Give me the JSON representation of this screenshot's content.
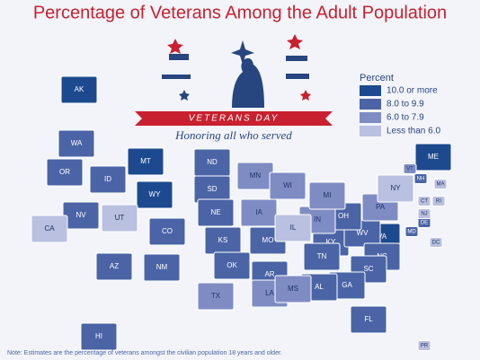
{
  "title": "Percentage of Veterans Among the Adult Population",
  "banner": {
    "title": "VETERANS DAY",
    "subtitle": "Honoring all who served"
  },
  "legend": {
    "title": "Percent",
    "items": [
      {
        "label": "10.0 or more",
        "color": "#1d4a8f",
        "states": [
          "AK",
          "MT",
          "WY",
          "VA",
          "ME"
        ]
      },
      {
        "label": "8.0 to 9.9",
        "color": "#4a64a6",
        "states": [
          "WA",
          "OR",
          "ID",
          "NV",
          "AZ",
          "NM",
          "CO",
          "ND",
          "SD",
          "NE",
          "KS",
          "OK",
          "AR",
          "MO",
          "KY",
          "WV",
          "TN",
          "NC",
          "SC",
          "GA",
          "AL",
          "FL",
          "HI",
          "NH",
          "DE",
          "OH",
          "MD"
        ]
      },
      {
        "label": "6.0 to 7.9",
        "color": "#7f8cc3",
        "states": [
          "MN",
          "WI",
          "IA",
          "TX",
          "LA",
          "MS",
          "IN",
          "MI",
          "PA",
          "VT"
        ]
      },
      {
        "label": "Less than 6.0",
        "color": "#b9c0e0",
        "states": [
          "CA",
          "UT",
          "IL",
          "NY",
          "NJ",
          "MA",
          "RI",
          "CT",
          "DC",
          "PR"
        ]
      }
    ]
  },
  "note": "Note: Estimates are the percentage of veterans amongst the civilian population 18 years and older."
}
